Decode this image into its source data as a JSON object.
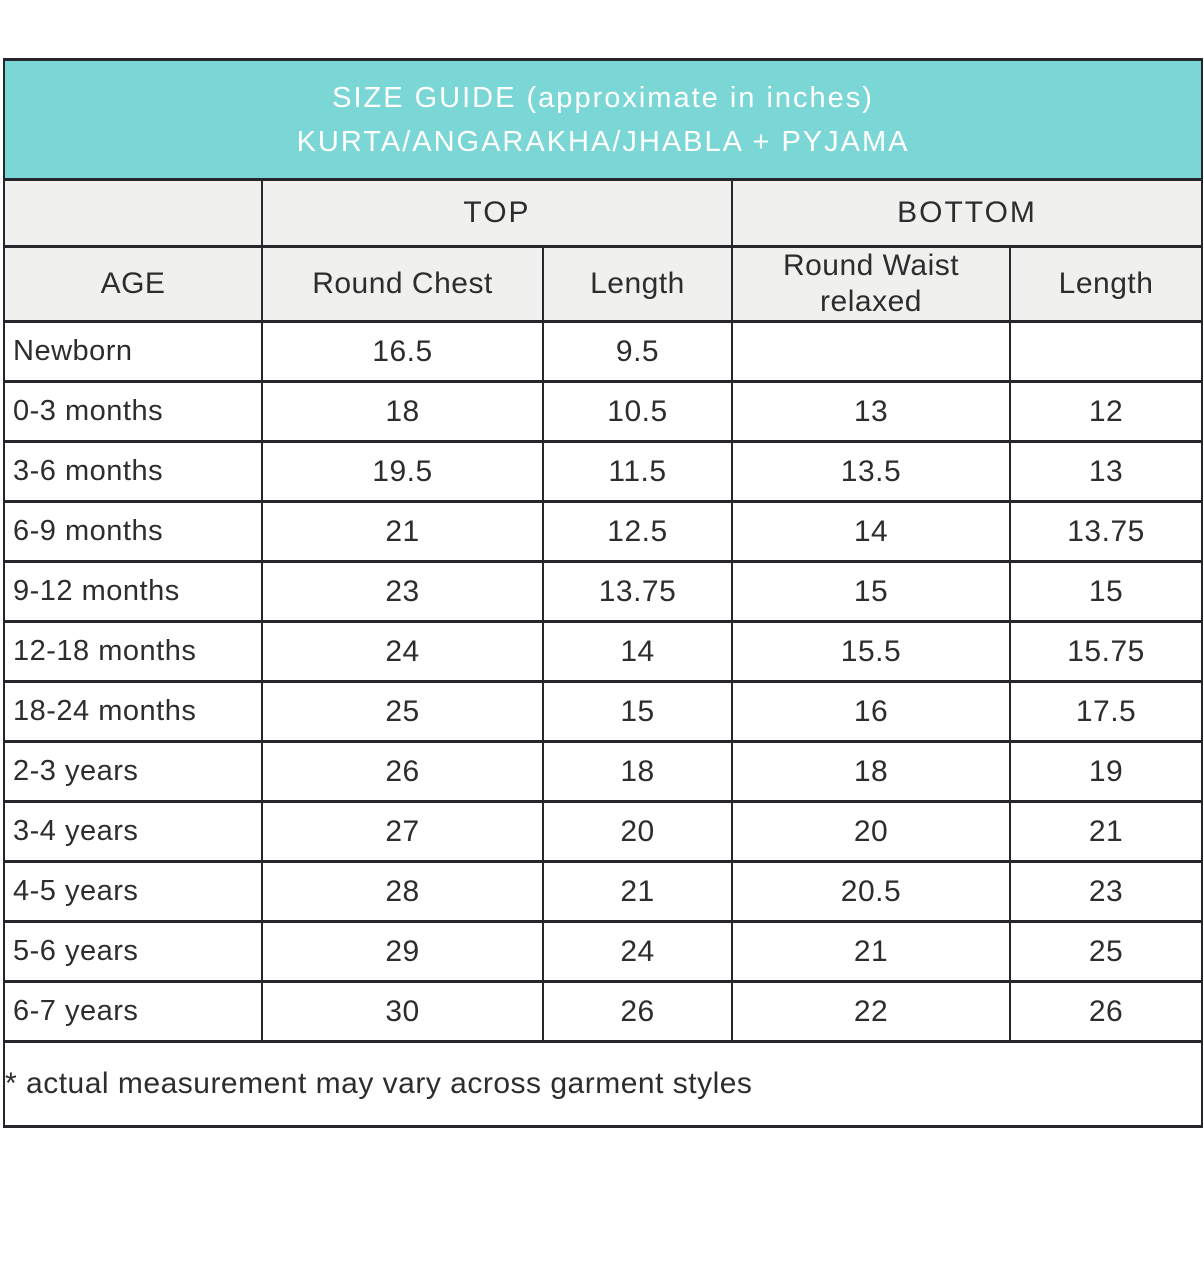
{
  "chart_data": {
    "type": "table",
    "title": "SIZE GUIDE (approximate in inches)",
    "subtitle": "KURTA/ANGARAKHA/JHABLA + PYJAMA",
    "column_groups": {
      "top": "TOP",
      "bottom": "BOTTOM"
    },
    "columns": [
      "AGE",
      "Round Chest",
      "Length",
      "Round Waist relaxed",
      "Length"
    ],
    "rows": [
      {
        "age": "Newborn",
        "values": [
          "16.5",
          "9.5",
          "",
          ""
        ]
      },
      {
        "age": "0-3 months",
        "values": [
          "18",
          "10.5",
          "13",
          "12"
        ]
      },
      {
        "age": "3-6 months",
        "values": [
          "19.5",
          "11.5",
          "13.5",
          "13"
        ]
      },
      {
        "age": "6-9 months",
        "values": [
          "21",
          "12.5",
          "14",
          "13.75"
        ]
      },
      {
        "age": "9-12 months",
        "values": [
          "23",
          "13.75",
          "15",
          "15"
        ]
      },
      {
        "age": "12-18 months",
        "values": [
          "24",
          "14",
          "15.5",
          "15.75"
        ]
      },
      {
        "age": "18-24 months",
        "values": [
          "25",
          "15",
          "16",
          "17.5"
        ]
      },
      {
        "age": "2-3 years",
        "values": [
          "26",
          "18",
          "18",
          "19"
        ]
      },
      {
        "age": "3-4 years",
        "values": [
          "27",
          "20",
          "20",
          "21"
        ]
      },
      {
        "age": "4-5 years",
        "values": [
          "28",
          "21",
          "20.5",
          "23"
        ]
      },
      {
        "age": "5-6 years",
        "values": [
          "29",
          "24",
          "21",
          "25"
        ]
      },
      {
        "age": "6-7 years",
        "values": [
          "30",
          "26",
          "22",
          "26"
        ]
      }
    ],
    "footnote": "* actual measurement may vary across garment styles"
  },
  "colors": {
    "title_bg": "#7bd7d5",
    "title_text": "#ffffff",
    "subheader_bg": "#f0f0ef",
    "row_bg": "#ffffff",
    "border": "#26262c",
    "text": "#2d2d2d"
  }
}
